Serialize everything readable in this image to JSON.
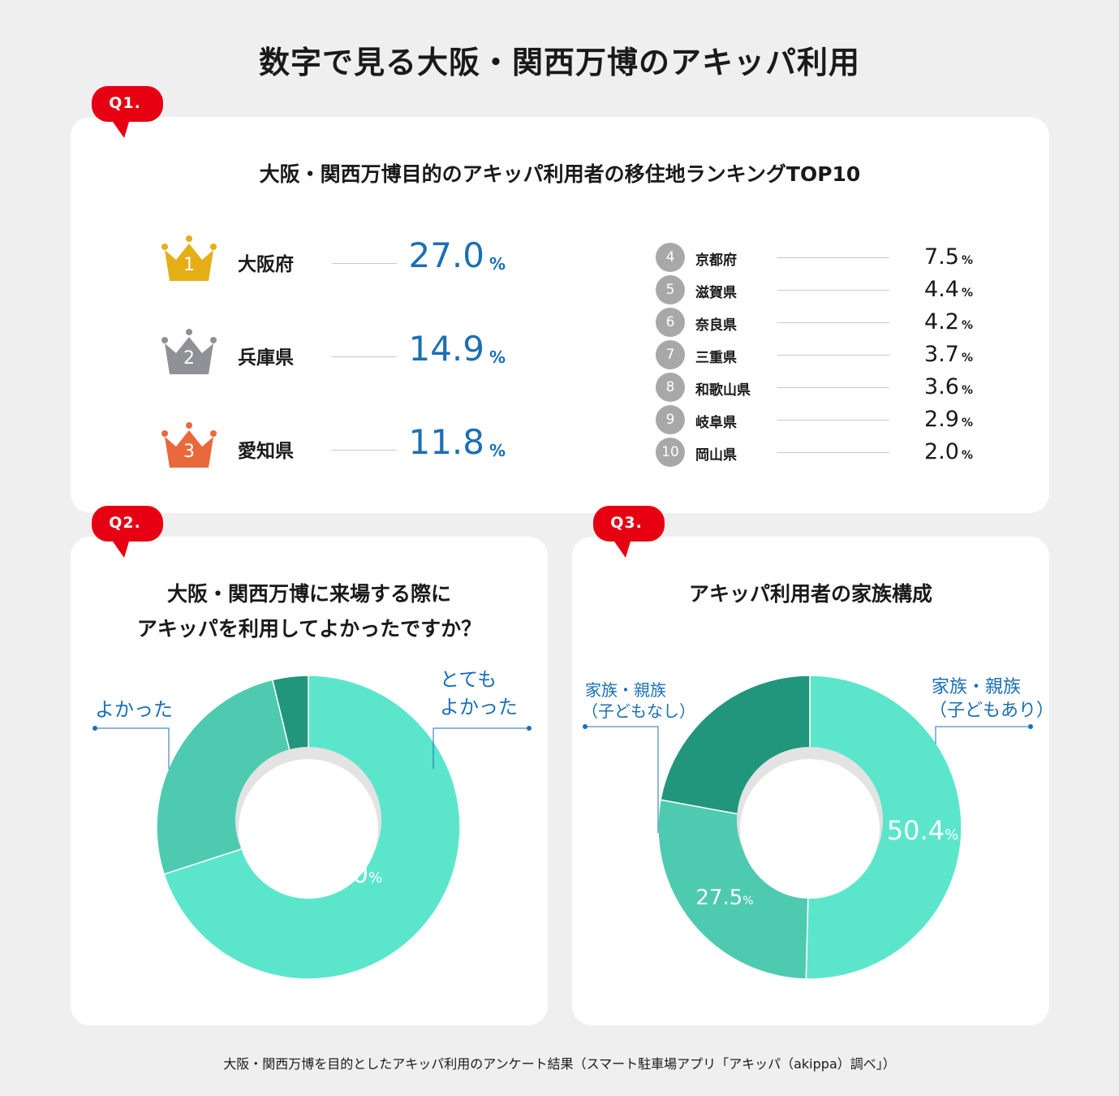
{
  "page": {
    "title": "数字で見る大阪・関西万博のアキッパ利用",
    "footer": "大阪・関西万博を目的としたアキッパ利用のアンケート結果（スマート駐車場アプリ「アキッパ（akippa）調べ」）"
  },
  "colors": {
    "accent_red": "#e60012",
    "blue": "#1b6fb5",
    "gold": "#e5ae17",
    "silver": "#8f9196",
    "bronze": "#e8693b",
    "mint": "#5be6cc",
    "teal_mid": "#4ecab0",
    "teal_dark": "#22967c"
  },
  "q1": {
    "badge": "Q1.",
    "title": "大阪・関西万博目的のアキッパ利用者の移住地ランキングTOP10",
    "top3": [
      {
        "rank": "1",
        "pref": "大阪府",
        "value": "27.0",
        "pct": "%",
        "crown_color": "#e5ae17"
      },
      {
        "rank": "2",
        "pref": "兵庫県",
        "value": "14.9",
        "pct": "%",
        "crown_color": "#8f9196"
      },
      {
        "rank": "3",
        "pref": "愛知県",
        "value": "11.8",
        "pct": "%",
        "crown_color": "#e8693b"
      }
    ],
    "others": [
      {
        "rank": "4",
        "pref": "京都府",
        "value": "7.5",
        "pct": "%"
      },
      {
        "rank": "5",
        "pref": "滋賀県",
        "value": "4.4",
        "pct": "%"
      },
      {
        "rank": "6",
        "pref": "奈良県",
        "value": "4.2",
        "pct": "%"
      },
      {
        "rank": "7",
        "pref": "三重県",
        "value": "3.7",
        "pct": "%"
      },
      {
        "rank": "8",
        "pref": "和歌山県",
        "value": "3.6",
        "pct": "%"
      },
      {
        "rank": "9",
        "pref": "岐阜県",
        "value": "2.9",
        "pct": "%"
      },
      {
        "rank": "10",
        "pref": "岡山県",
        "value": "2.0",
        "pct": "%"
      }
    ]
  },
  "q2": {
    "badge": "Q2.",
    "title_line1": "大阪・関西万博に来場する際に",
    "title_line2": "アキッパを利用してよかったですか？",
    "label_right_1": "とても",
    "label_right_2": "よかった",
    "label_left": "よかった"
  },
  "q3": {
    "badge": "Q3.",
    "title": "アキッパ利用者の家族構成",
    "label_right_1": "家族・親族",
    "label_right_2": "（子どもあり）",
    "label_left_1": "家族・親族",
    "label_left_2": "（子どもなし）"
  },
  "chart_data": [
    {
      "type": "bar",
      "title": "大阪・関西万博目的のアキッパ利用者の移住地ランキングTOP10",
      "categories": [
        "大阪府",
        "兵庫県",
        "愛知県",
        "京都府",
        "滋賀県",
        "奈良県",
        "三重県",
        "和歌山県",
        "岐阜県",
        "岡山県"
      ],
      "values": [
        27.0,
        14.9,
        11.8,
        7.5,
        4.4,
        4.2,
        3.7,
        3.6,
        2.9,
        2.0
      ]
    },
    {
      "type": "pie",
      "title": "大阪・関西万博に来場する際にアキッパを利用してよかったですか？",
      "slices": [
        {
          "label": "とてもよかった",
          "value": 70.0,
          "value_label": "70.0",
          "color": "#5be6cc"
        },
        {
          "label": "よかった",
          "value": 26.2,
          "value_label": "26.2",
          "color": "#4ecab0"
        },
        {
          "label": "",
          "value": 3.8,
          "value_label": "",
          "color": "#22967c"
        }
      ]
    },
    {
      "type": "pie",
      "title": "アキッパ利用者の家族構成",
      "slices": [
        {
          "label": "家族・親族（子どもあり）",
          "value": 50.4,
          "value_label": "50.4",
          "color": "#5be6cc"
        },
        {
          "label": "家族・親族（子どもなし）",
          "value": 27.5,
          "value_label": "27.5",
          "color": "#4ecab0"
        },
        {
          "label": "",
          "value": 22.1,
          "value_label": "",
          "color": "#22967c"
        }
      ]
    }
  ]
}
